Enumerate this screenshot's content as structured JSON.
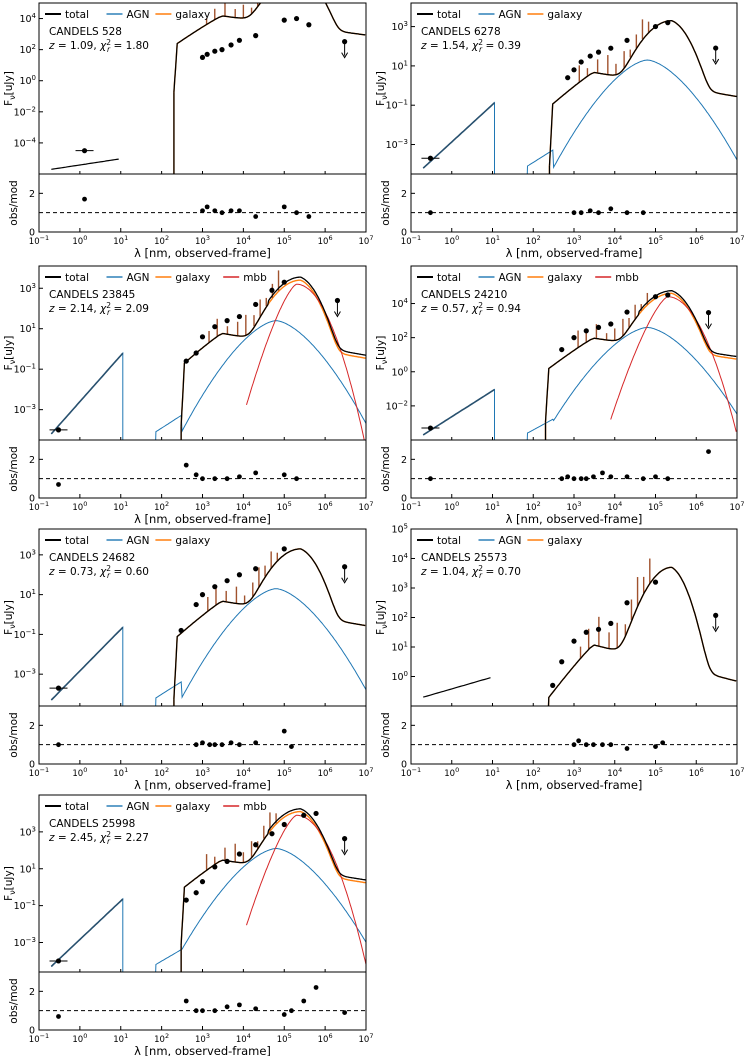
{
  "shared": {
    "xlabel": "λ [nm, observed-frame]",
    "ylabel_top": "F_ν[uJy]",
    "ylabel_bottom": "obs/mod",
    "colors": {
      "total": "#000000",
      "AGN": "#1f77b4",
      "galaxy": "#ff7f0e",
      "mbb": "#d62728",
      "points": "#000000",
      "dashed": "#000000"
    }
  },
  "chart_data": [
    {
      "type": "line",
      "title": "CANDELS 528",
      "z": "1.09",
      "chi2": "1.80",
      "legend": [
        "total",
        "AGN",
        "galaxy"
      ],
      "xlim": [
        0.1,
        10000000
      ],
      "ylim_log": [
        -6,
        5
      ],
      "yticks": [
        -4,
        -2,
        0,
        2,
        4
      ],
      "sed_start": 200,
      "agn_scale": 0,
      "mbb": false,
      "peak": 6.8,
      "hot": false,
      "low_points": [
        [
          1.3,
          -4.5
        ]
      ],
      "points": [
        [
          1000,
          1.5
        ],
        [
          1300,
          1.7
        ],
        [
          2000,
          1.9
        ],
        [
          3000,
          2.0
        ],
        [
          5000,
          2.3
        ],
        [
          8000,
          2.6
        ],
        [
          20000,
          2.9
        ],
        [
          100000,
          3.9
        ],
        [
          200000,
          4.0
        ],
        [
          400000,
          3.6
        ]
      ],
      "upper_limits": [
        [
          3000000,
          2.0
        ]
      ],
      "resid": [
        [
          1.3,
          1.7
        ],
        [
          1000,
          1.1
        ],
        [
          1300,
          1.3
        ],
        [
          2000,
          1.1
        ],
        [
          3000,
          1.0
        ],
        [
          5000,
          1.1
        ],
        [
          8000,
          1.1
        ],
        [
          20000,
          0.8
        ],
        [
          100000,
          1.3
        ],
        [
          200000,
          1.0
        ],
        [
          400000,
          0.8
        ]
      ]
    },
    {
      "type": "line",
      "title": "CANDELS 6278",
      "z": "1.54",
      "chi2": "0.39",
      "legend": [
        "total",
        "AGN",
        "galaxy"
      ],
      "xlim": [
        0.1,
        10000000
      ],
      "ylim_log": [
        -4.5,
        4.2
      ],
      "yticks": [
        -3,
        -1,
        1,
        3
      ],
      "sed_start": 250,
      "agn_scale": 1,
      "mbb": false,
      "peak": 3.3,
      "hot": false,
      "low_points": [
        [
          0.3,
          -3.7
        ]
      ],
      "points": [
        [
          700,
          0.4
        ],
        [
          1000,
          0.8
        ],
        [
          1500,
          1.2
        ],
        [
          2500,
          1.5
        ],
        [
          4000,
          1.7
        ],
        [
          8000,
          1.9
        ],
        [
          20000,
          2.3
        ],
        [
          100000,
          3.0
        ],
        [
          200000,
          3.2
        ]
      ],
      "upper_limits": [
        [
          3000000,
          1.5
        ]
      ],
      "resid": [
        [
          0.3,
          1.0
        ],
        [
          1000,
          1.0
        ],
        [
          1500,
          1.0
        ],
        [
          2500,
          1.1
        ],
        [
          4000,
          1.0
        ],
        [
          8000,
          1.2
        ],
        [
          20000,
          1.0
        ],
        [
          50000,
          1.0
        ]
      ]
    },
    {
      "type": "line",
      "title": "CANDELS 23845",
      "z": "2.14",
      "chi2": "2.09",
      "legend": [
        "total",
        "AGN",
        "galaxy",
        "mbb"
      ],
      "xlim": [
        0.1,
        10000000
      ],
      "ylim_log": [
        -4.5,
        4.1
      ],
      "yticks": [
        -3,
        -1,
        1,
        3
      ],
      "sed_start": 300,
      "agn_scale": 1.2,
      "mbb": true,
      "peak": 3.4,
      "hot": false,
      "low_points": [
        [
          0.3,
          -4.0
        ]
      ],
      "points": [
        [
          400,
          -0.6
        ],
        [
          700,
          -0.2
        ],
        [
          1000,
          0.6
        ],
        [
          2000,
          1.1
        ],
        [
          4000,
          1.4
        ],
        [
          8000,
          1.6
        ],
        [
          20000,
          2.2
        ],
        [
          50000,
          2.9
        ],
        [
          100000,
          3.3
        ]
      ],
      "upper_limits": [
        [
          2000000,
          2.0
        ]
      ],
      "resid": [
        [
          0.3,
          0.7
        ],
        [
          400,
          1.7
        ],
        [
          700,
          1.2
        ],
        [
          1000,
          1.0
        ],
        [
          2000,
          1.0
        ],
        [
          4000,
          1.0
        ],
        [
          8000,
          1.1
        ],
        [
          20000,
          1.3
        ],
        [
          100000,
          1.2
        ],
        [
          200000,
          1.0
        ]
      ]
    },
    {
      "type": "line",
      "title": "CANDELS 24210",
      "z": "0.57",
      "chi2": "0.94",
      "legend": [
        "total",
        "AGN",
        "galaxy",
        "mbb"
      ],
      "xlim": [
        0.1,
        10000000
      ],
      "ylim_log": [
        -4,
        6.2
      ],
      "yticks": [
        -2,
        0,
        2,
        4
      ],
      "sed_start": 200,
      "agn_scale": 0.8,
      "mbb": true,
      "peak": 4.6,
      "hot": false,
      "low_points": [
        [
          0.3,
          -3.3
        ]
      ],
      "points": [
        [
          500,
          1.3
        ],
        [
          1000,
          2.0
        ],
        [
          2000,
          2.4
        ],
        [
          4000,
          2.6
        ],
        [
          8000,
          2.8
        ],
        [
          20000,
          3.5
        ],
        [
          100000,
          4.4
        ],
        [
          200000,
          4.5
        ]
      ],
      "upper_limits": [
        [
          2000000,
          3.0
        ]
      ],
      "resid": [
        [
          0.3,
          1.0
        ],
        [
          500,
          1.0
        ],
        [
          700,
          1.1
        ],
        [
          1000,
          1.0
        ],
        [
          1500,
          1.0
        ],
        [
          2000,
          1.0
        ],
        [
          3000,
          1.1
        ],
        [
          5000,
          1.3
        ],
        [
          8000,
          1.1
        ],
        [
          20000,
          1.1
        ],
        [
          50000,
          1.0
        ],
        [
          100000,
          1.1
        ],
        [
          200000,
          1.0
        ],
        [
          2000000,
          2.4
        ]
      ]
    },
    {
      "type": "line",
      "title": "CANDELS 24682",
      "z": "0.73",
      "chi2": "0.60",
      "legend": [
        "total",
        "AGN",
        "galaxy"
      ],
      "xlim": [
        0.1,
        10000000
      ],
      "ylim_log": [
        -4.6,
        4.3
      ],
      "yticks": [
        -3,
        -1,
        1,
        3
      ],
      "sed_start": 200,
      "agn_scale": 1.1,
      "mbb": false,
      "peak": 3.3,
      "hot": false,
      "low_points": [
        [
          0.3,
          -3.7
        ]
      ],
      "points": [
        [
          300,
          -0.8
        ],
        [
          700,
          0.5
        ],
        [
          1000,
          1.0
        ],
        [
          2000,
          1.4
        ],
        [
          4000,
          1.7
        ],
        [
          8000,
          2.0
        ],
        [
          20000,
          2.3
        ],
        [
          100000,
          3.3
        ]
      ],
      "upper_limits": [
        [
          3000000,
          2.0
        ]
      ],
      "resid": [
        [
          0.3,
          1.0
        ],
        [
          700,
          1.0
        ],
        [
          1000,
          1.1
        ],
        [
          1500,
          1.0
        ],
        [
          2000,
          1.0
        ],
        [
          3000,
          1.0
        ],
        [
          5000,
          1.1
        ],
        [
          8000,
          1.0
        ],
        [
          20000,
          1.1
        ],
        [
          100000,
          1.7
        ],
        [
          150000,
          0.9
        ]
      ]
    },
    {
      "type": "line",
      "title": "CANDELS 25573",
      "z": "1.04",
      "chi2": "0.70",
      "legend": [
        "total",
        "AGN",
        "galaxy"
      ],
      "xlim": [
        0.1,
        10000000
      ],
      "ylim_log": [
        -1,
        5
      ],
      "yticks": [
        0,
        1,
        2,
        3,
        4,
        5
      ],
      "sed_start": 200,
      "agn_scale": 0,
      "mbb": false,
      "peak": 3.7,
      "hot": false,
      "low_points": [],
      "points": [
        [
          300,
          -0.3
        ],
        [
          500,
          0.5
        ],
        [
          1000,
          1.2
        ],
        [
          2000,
          1.5
        ],
        [
          4000,
          1.6
        ],
        [
          8000,
          1.8
        ],
        [
          20000,
          2.5
        ],
        [
          100000,
          3.2
        ]
      ],
      "upper_limits": [
        [
          3000000,
          1.8
        ]
      ],
      "resid": [
        [
          1000,
          1.0
        ],
        [
          1300,
          1.2
        ],
        [
          2000,
          1.0
        ],
        [
          3000,
          1.0
        ],
        [
          5000,
          1.0
        ],
        [
          8000,
          1.0
        ],
        [
          20000,
          0.8
        ],
        [
          100000,
          0.9
        ],
        [
          150000,
          1.1
        ]
      ]
    },
    {
      "type": "line",
      "title": "CANDELS 25998",
      "z": "2.45",
      "chi2": "2.27",
      "legend": [
        "total",
        "AGN",
        "galaxy",
        "mbb"
      ],
      "xlim": [
        0.1,
        10000000
      ],
      "ylim_log": [
        -4.6,
        5.0
      ],
      "yticks": [
        -3,
        -1,
        1,
        3
      ],
      "sed_start": 300,
      "agn_scale": 1.1,
      "mbb": true,
      "peak": 4.1,
      "hot": true,
      "low_points": [
        [
          0.3,
          -4.0
        ]
      ],
      "points": [
        [
          400,
          -0.7
        ],
        [
          700,
          -0.3
        ],
        [
          1000,
          0.3
        ],
        [
          2000,
          1.1
        ],
        [
          4000,
          1.4
        ],
        [
          8000,
          1.8
        ],
        [
          20000,
          2.3
        ],
        [
          50000,
          2.9
        ],
        [
          100000,
          3.4
        ],
        [
          300000,
          3.9
        ],
        [
          600000,
          4.0
        ]
      ],
      "upper_limits": [
        [
          3000000,
          2.2
        ]
      ],
      "resid": [
        [
          0.3,
          0.7
        ],
        [
          400,
          1.5
        ],
        [
          700,
          1.0
        ],
        [
          1000,
          1.0
        ],
        [
          2000,
          1.0
        ],
        [
          4000,
          1.2
        ],
        [
          8000,
          1.3
        ],
        [
          20000,
          1.1
        ],
        [
          100000,
          0.8
        ],
        [
          150000,
          1.0
        ],
        [
          300000,
          1.5
        ],
        [
          600000,
          2.2
        ],
        [
          3000000,
          0.9
        ]
      ]
    }
  ]
}
